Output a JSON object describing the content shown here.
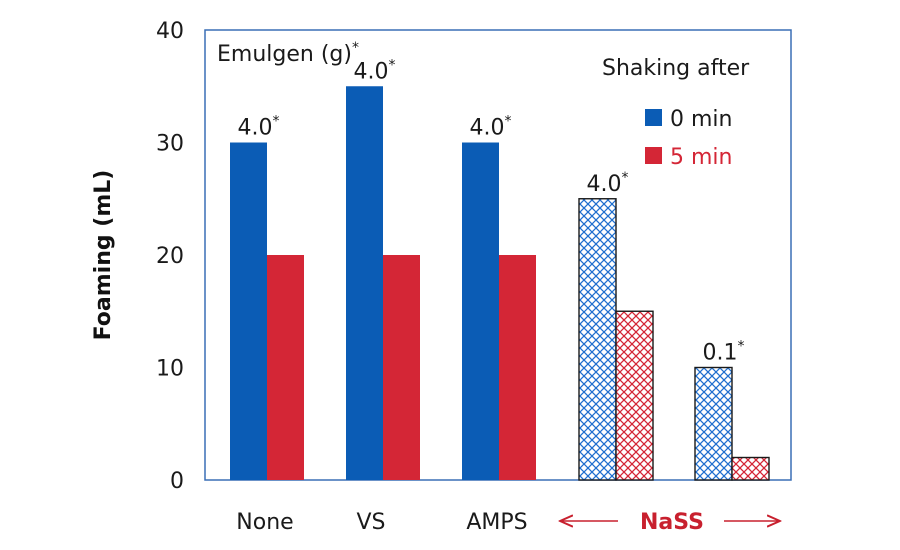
{
  "chart_data": {
    "type": "bar",
    "categories": [
      "None",
      "VS",
      "AMPS",
      "NaSS",
      "NaSS"
    ],
    "series": [
      {
        "name": "0 min",
        "values": [
          30,
          35,
          30,
          25,
          10
        ],
        "color": "#0b5cb5"
      },
      {
        "name": "5 min",
        "values": [
          20,
          20,
          20,
          15,
          2
        ],
        "color": "#d42636"
      }
    ],
    "patterned_categories": [
      3,
      4
    ],
    "emulgen_labels": [
      "4.0",
      "4.0",
      "4.0",
      "4.0",
      "0.1"
    ],
    "emulgen_label_mark": "*",
    "annotation_title": "Emulgen (g)",
    "ylabel": "Foaming (mL)",
    "xlabel": "",
    "ylim": [
      0,
      40
    ],
    "yticks": [
      0,
      10,
      20,
      30,
      40
    ],
    "legend_title": "Shaking after",
    "legend_position": "top-right",
    "group_label": "NaSS",
    "group_label_color": "#c8202e",
    "grid": false,
    "frame_color": "#3a6fb5"
  }
}
